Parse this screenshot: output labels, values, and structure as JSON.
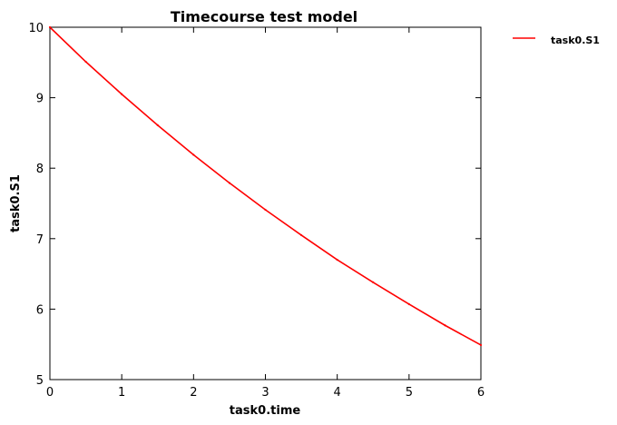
{
  "chart_data": {
    "type": "line",
    "title": "Timecourse test model",
    "xlabel": "task0.time",
    "ylabel": "task0.S1",
    "xlim": [
      0,
      6
    ],
    "ylim": [
      5,
      10
    ],
    "xticks": [
      "0",
      "1",
      "2",
      "3",
      "4",
      "5",
      "6"
    ],
    "yticks": [
      "5",
      "6",
      "7",
      "8",
      "9",
      "10"
    ],
    "grid": false,
    "legend_position": "outside-top-right",
    "series": [
      {
        "name": "task0.S1",
        "color": "#ff0000",
        "x": [
          0,
          0.5,
          1,
          1.5,
          2,
          2.5,
          3,
          3.5,
          4,
          4.5,
          5,
          5.5,
          6
        ],
        "y": [
          10.0,
          9.51,
          9.05,
          8.61,
          8.19,
          7.79,
          7.41,
          7.05,
          6.7,
          6.38,
          6.07,
          5.77,
          5.49
        ]
      }
    ]
  }
}
